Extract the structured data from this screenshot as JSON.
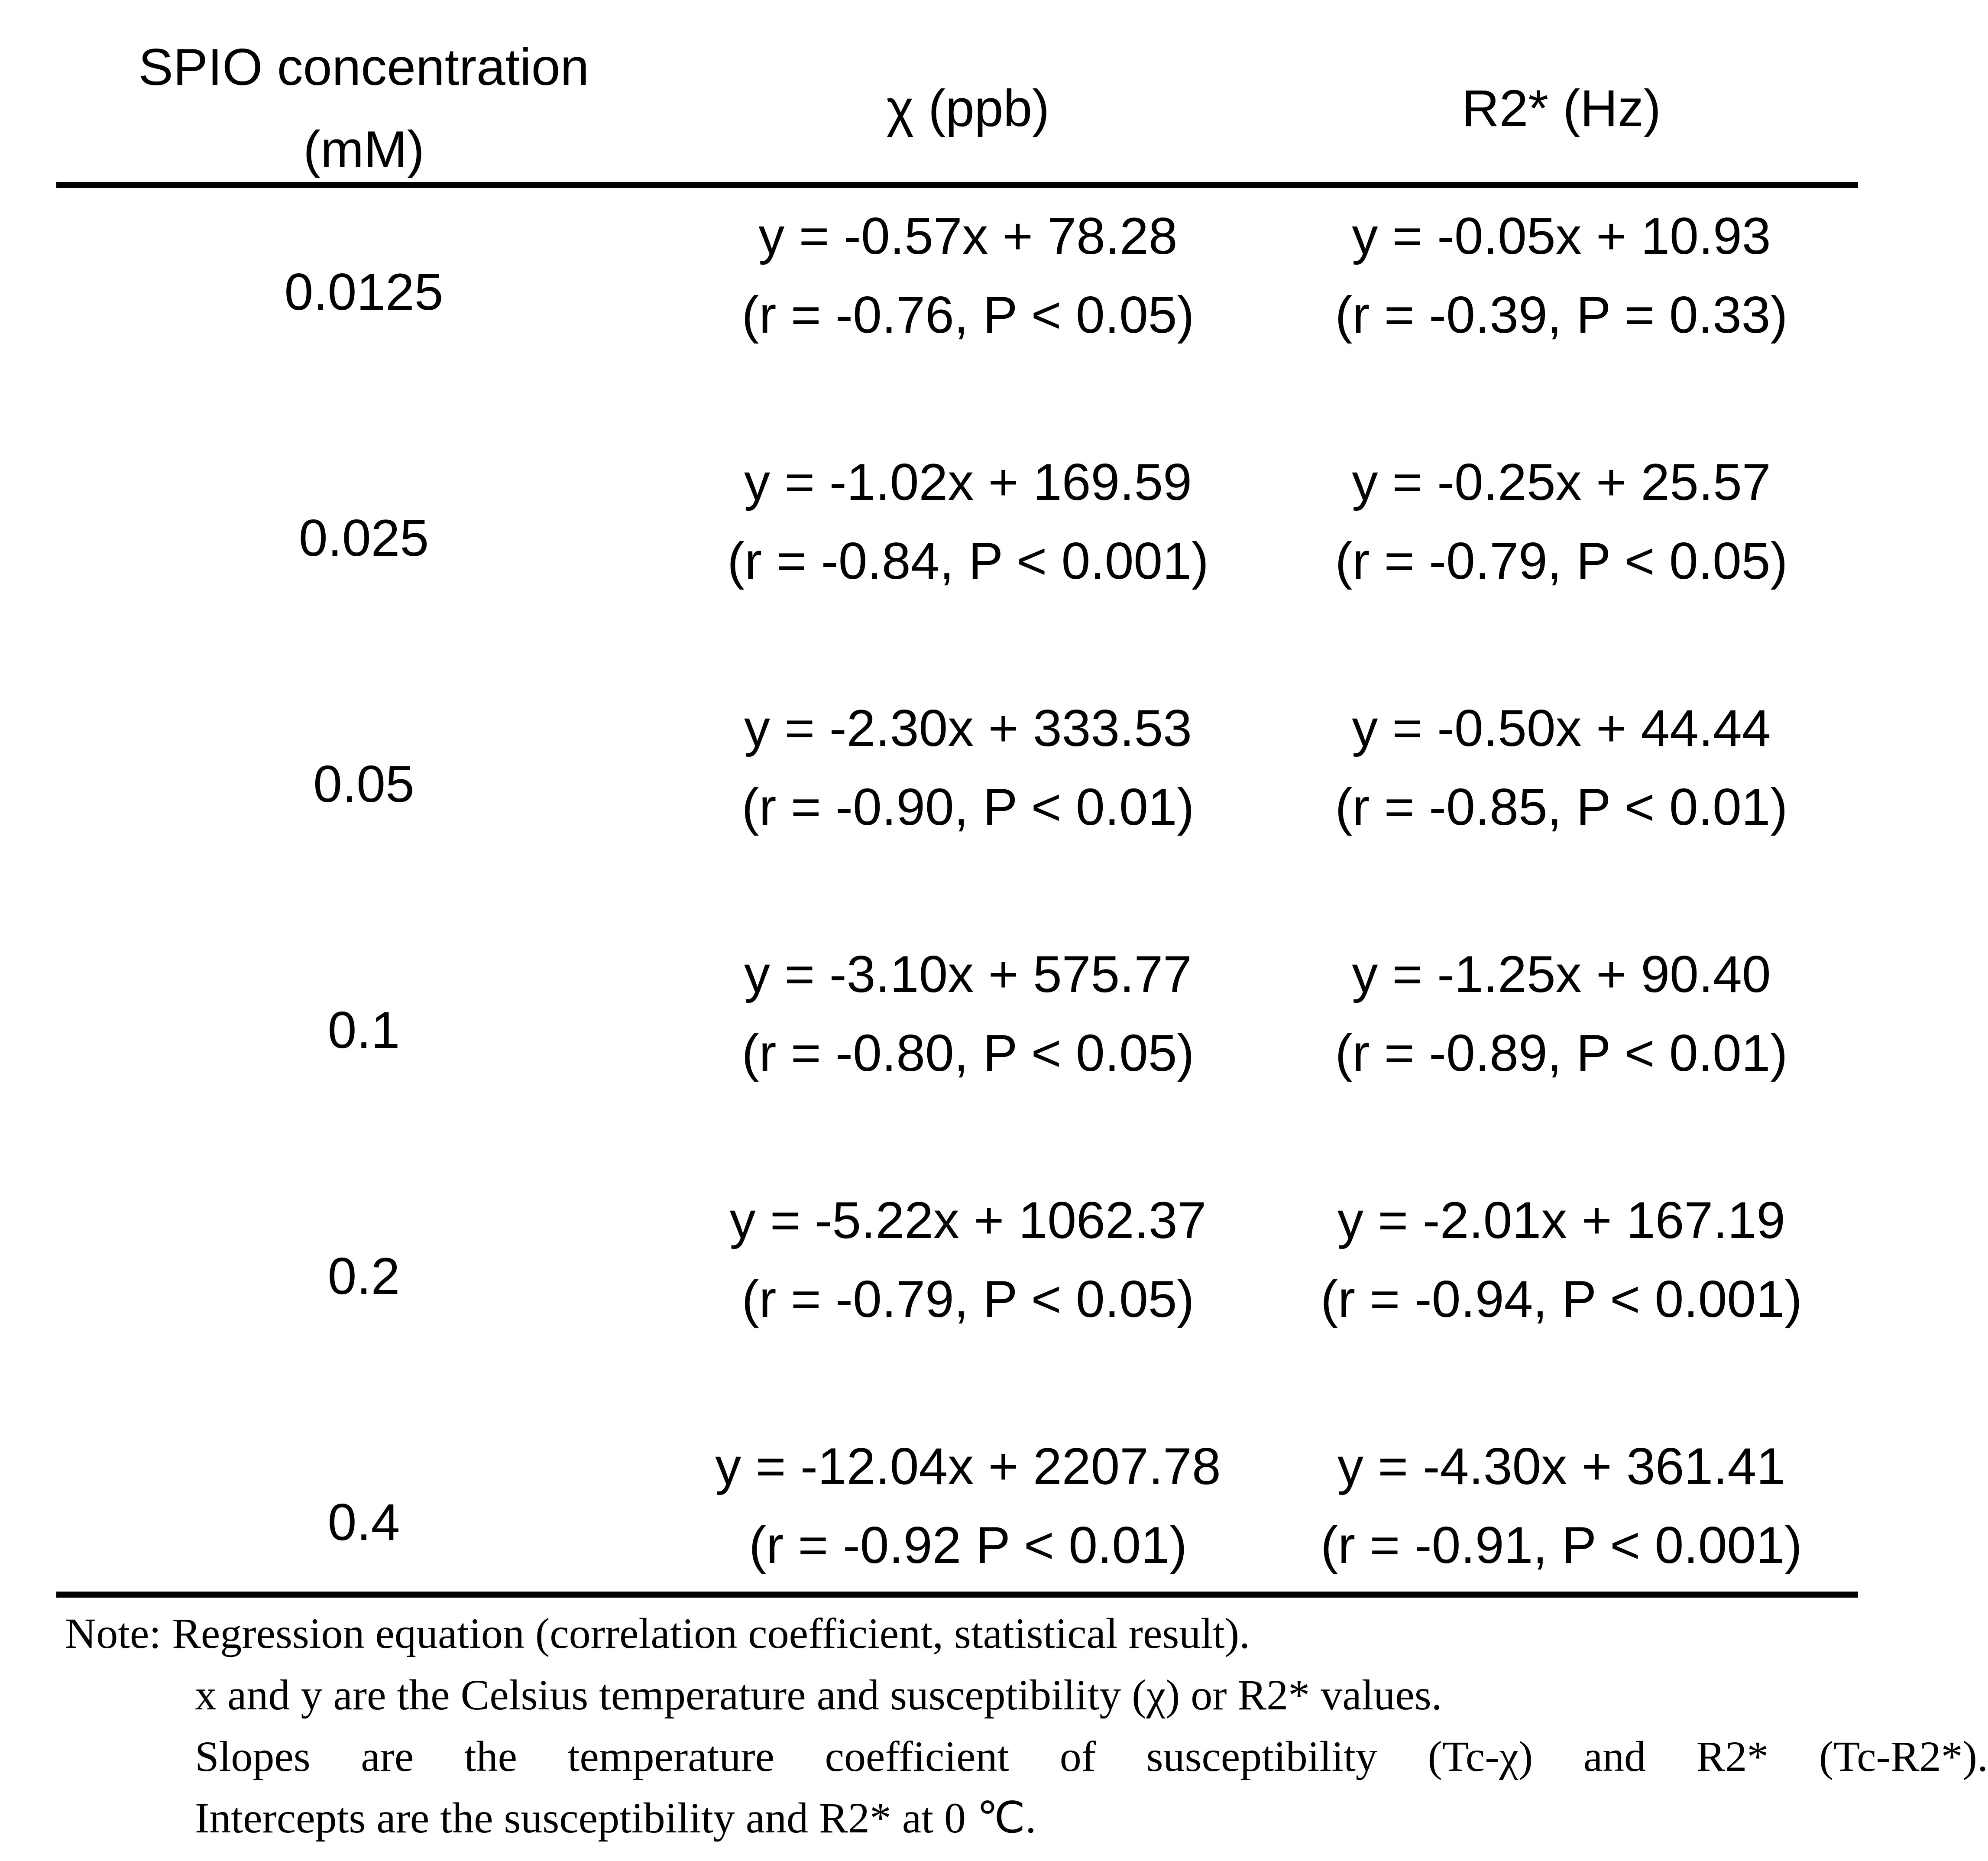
{
  "table": {
    "headers": {
      "concentration_line1": "SPIO concentration",
      "concentration_line2": "(mM)",
      "chi": "χ (ppb)",
      "r2": "R2* (Hz)"
    },
    "rows": [
      {
        "concentration": "0.0125",
        "chi_equation": "y = -0.57x + 78.28",
        "chi_stats": "(r = -0.76, P < 0.05)",
        "r2_equation": "y = -0.05x + 10.93",
        "r2_stats": "(r = -0.39, P = 0.33)"
      },
      {
        "concentration": "0.025",
        "chi_equation": "y = -1.02x + 169.59",
        "chi_stats": "(r = -0.84, P < 0.001)",
        "r2_equation": "y = -0.25x + 25.57",
        "r2_stats": "(r = -0.79, P < 0.05)"
      },
      {
        "concentration": "0.05",
        "chi_equation": "y = -2.30x + 333.53",
        "chi_stats": "(r = -0.90, P < 0.01)",
        "r2_equation": "y = -0.50x + 44.44",
        "r2_stats": "(r = -0.85, P < 0.01)"
      },
      {
        "concentration": "0.1",
        "chi_equation": "y = -3.10x + 575.77",
        "chi_stats": "(r = -0.80, P < 0.05)",
        "r2_equation": "y = -1.25x + 90.40",
        "r2_stats": "(r = -0.89, P < 0.01)"
      },
      {
        "concentration": "0.2",
        "chi_equation": "y = -5.22x + 1062.37",
        "chi_stats": "(r = -0.79, P < 0.05)",
        "r2_equation": "y = -2.01x + 167.19",
        "r2_stats": "(r = -0.94, P < 0.001)"
      },
      {
        "concentration": "0.4",
        "chi_equation": "y = -12.04x + 2207.78",
        "chi_stats": "(r = -0.92 P < 0.01)",
        "r2_equation": "y = -4.30x + 361.41",
        "r2_stats": "(r = -0.91, P < 0.001)"
      }
    ]
  },
  "note": {
    "line1": "Note: Regression equation (correlation coefficient, statistical result).",
    "line2": "x and y are the Celsius temperature and susceptibility (χ) or R2* values.",
    "line3": "Slopes are the temperature coefficient of susceptibility (Tc-χ) and R2* (Tc-R2*).",
    "line4": "Intercepts are the susceptibility and R2* at 0 ℃."
  }
}
